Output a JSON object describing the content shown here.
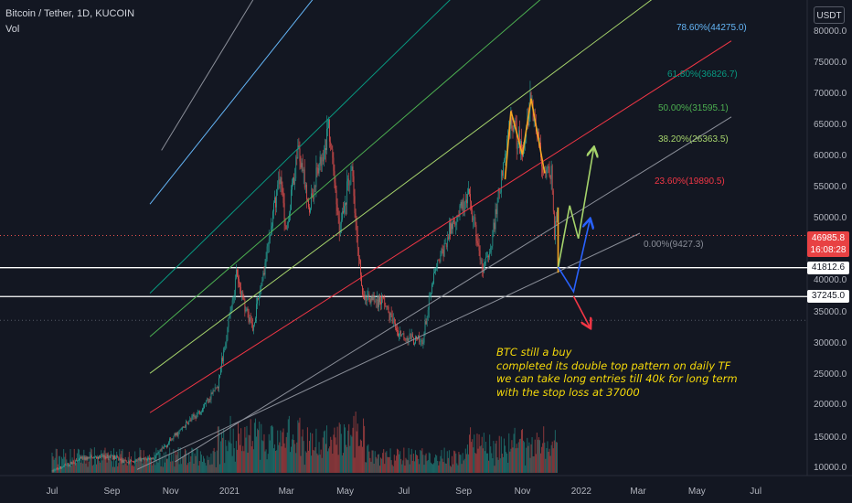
{
  "header": {
    "symbol": "Bitcoin / Tether, 1D, KUCOIN",
    "indicator": "Vol"
  },
  "unit_button": "USDT",
  "price_tags": {
    "last_price": "46985.8",
    "countdown": "16:08:28",
    "level_upper": "41812.6",
    "level_lower": "37245.0"
  },
  "annotation_lines": [
    "BTC still a buy",
    "completed its double top pattern on daily TF",
    "we can take long entries till 40k for long term",
    "with the stop loss at 37000"
  ],
  "colors": {
    "background": "#131722",
    "up_candle": "#26a69a",
    "down_candle": "#ef5350",
    "note_text": "#f5d90a",
    "last_price_tag": "#e84143"
  },
  "chart_data": {
    "type": "candlestick",
    "title": "Bitcoin / Tether, 1D, KUCOIN",
    "y_axis": {
      "scale": "log",
      "range": [
        9800,
        93000
      ],
      "ticks": [
        80000.0,
        75000.0,
        70000.0,
        65000.0,
        60000.0,
        55000.0,
        50000.0,
        45000.0,
        40000.0,
        35000.0,
        30000.0,
        25000.0,
        20000.0,
        15000.0,
        10000.0
      ]
    },
    "x_axis": {
      "range": [
        "2020-06-25",
        "2022-08-05"
      ],
      "ticks": [
        {
          "label": "Jul",
          "date": "2020-07-01"
        },
        {
          "label": "Sep",
          "date": "2020-09-01"
        },
        {
          "label": "Nov",
          "date": "2020-11-01"
        },
        {
          "label": "2021",
          "date": "2021-01-01"
        },
        {
          "label": "Mar",
          "date": "2021-03-01"
        },
        {
          "label": "May",
          "date": "2021-05-01"
        },
        {
          "label": "Jul",
          "date": "2021-07-01"
        },
        {
          "label": "Sep",
          "date": "2021-09-01"
        },
        {
          "label": "Nov",
          "date": "2021-11-01"
        },
        {
          "label": "2022",
          "date": "2022-01-01"
        },
        {
          "label": "Mar",
          "date": "2022-03-01"
        },
        {
          "label": "May",
          "date": "2022-05-01"
        },
        {
          "label": "Jul",
          "date": "2022-07-01"
        }
      ]
    },
    "price_path": [
      [
        "2020-07-01",
        9200
      ],
      [
        "2020-08-01",
        11300
      ],
      [
        "2020-09-01",
        11700
      ],
      [
        "2020-09-15",
        10700
      ],
      [
        "2020-10-15",
        11400
      ],
      [
        "2020-11-05",
        15000
      ],
      [
        "2020-12-01",
        18800
      ],
      [
        "2020-12-20",
        23000
      ],
      [
        "2021-01-08",
        40500
      ],
      [
        "2021-01-25",
        32000
      ],
      [
        "2021-02-10",
        45000
      ],
      [
        "2021-02-22",
        57000
      ],
      [
        "2021-03-01",
        48000
      ],
      [
        "2021-03-13",
        61000
      ],
      [
        "2021-03-25",
        51500
      ],
      [
        "2021-04-14",
        64500
      ],
      [
        "2021-04-25",
        48000
      ],
      [
        "2021-05-08",
        58000
      ],
      [
        "2021-05-19",
        37000
      ],
      [
        "2021-06-10",
        36500
      ],
      [
        "2021-06-25",
        31500
      ],
      [
        "2021-07-20",
        29800
      ],
      [
        "2021-08-01",
        40500
      ],
      [
        "2021-08-22",
        49500
      ],
      [
        "2021-09-07",
        52800
      ],
      [
        "2021-09-21",
        40800
      ],
      [
        "2021-10-01",
        47000
      ],
      [
        "2021-10-20",
        66000
      ],
      [
        "2021-11-01",
        60500
      ],
      [
        "2021-11-10",
        69000
      ],
      [
        "2021-11-24",
        57000
      ],
      [
        "2021-12-01",
        57200
      ],
      [
        "2021-12-04",
        47500
      ],
      [
        "2021-12-07",
        50600
      ]
    ],
    "fib_channel": {
      "levels": [
        {
          "label": "0.00%(9427.3)",
          "color": "#8a8e98",
          "left": [
            "2020-11-15",
            11100
          ],
          "right": [
            "2022-01-01",
            40500
          ]
        },
        {
          "label": "23.60%(19890.5)",
          "color": "#f23645",
          "left": [
            "2020-10-20",
            19000
          ],
          "right": [
            "2022-01-01",
            54000
          ]
        },
        {
          "label": "38.20%(26363.5)",
          "color": "#a5d36b",
          "left": [
            "2020-10-20",
            25500
          ],
          "right": [
            "2022-01-01",
            67000
          ]
        },
        {
          "label": "50.00%(31595.1)",
          "color": "#4caf50",
          "left": [
            "2020-10-20",
            31500
          ],
          "right": [
            "2022-01-01",
            80000
          ]
        },
        {
          "label": "61.80%(36826.7)",
          "color": "#089981",
          "left": [
            "2020-10-20",
            38500
          ],
          "right": [
            "2022-01-01",
            94000
          ]
        },
        {
          "label": "78.60%(44275.0)",
          "color": "#64b5f6",
          "left": [
            "2020-10-20",
            53000
          ],
          "right": [
            "2022-01-01",
            125000
          ]
        }
      ],
      "outer_upper": {
        "color": "#8a8e98",
        "left": [
          "2020-11-01",
          62000
        ],
        "right": [
          "2022-04-01",
          200000
        ]
      }
    },
    "horizontal_levels": [
      {
        "price": 46985.8,
        "style": "dotted",
        "color": "#ef5350"
      },
      {
        "price": 41812.6,
        "style": "solid",
        "color": "#ffffff"
      },
      {
        "price": 37245.0,
        "style": "solid",
        "color": "#ffffff"
      },
      {
        "price": 33500,
        "style": "dotted",
        "color": "#555a66"
      }
    ],
    "drawings": [
      {
        "kind": "double-top",
        "color": "#f5a623",
        "points": [
          [
            "2021-10-14",
            56000
          ],
          [
            "2021-10-20",
            67000
          ],
          [
            "2021-11-01",
            60000
          ],
          [
            "2021-11-10",
            69000
          ],
          [
            "2021-11-24",
            57000
          ]
        ]
      },
      {
        "kind": "path",
        "color": "#f5a623",
        "points": [
          [
            "2021-12-08",
            51500
          ],
          [
            "2021-12-08",
            41000
          ]
        ]
      },
      {
        "kind": "arrow",
        "color": "#a5d36b",
        "points": [
          [
            "2021-12-08",
            41800
          ],
          [
            "2021-12-20",
            51800
          ],
          [
            "2021-12-29",
            46500
          ],
          [
            "2022-01-14",
            61000
          ]
        ]
      },
      {
        "kind": "arrow",
        "color": "#2962ff",
        "points": [
          [
            "2021-12-08",
            41900
          ],
          [
            "2021-12-24",
            38000
          ],
          [
            "2022-01-10",
            49500
          ]
        ]
      },
      {
        "kind": "arrow",
        "color": "#f23645",
        "points": [
          [
            "2021-12-24",
            37300
          ],
          [
            "2022-01-10",
            32400
          ]
        ]
      }
    ],
    "volume": {
      "panel_bottom_price": 9800,
      "note": "volume histogram, heights relative"
    }
  }
}
